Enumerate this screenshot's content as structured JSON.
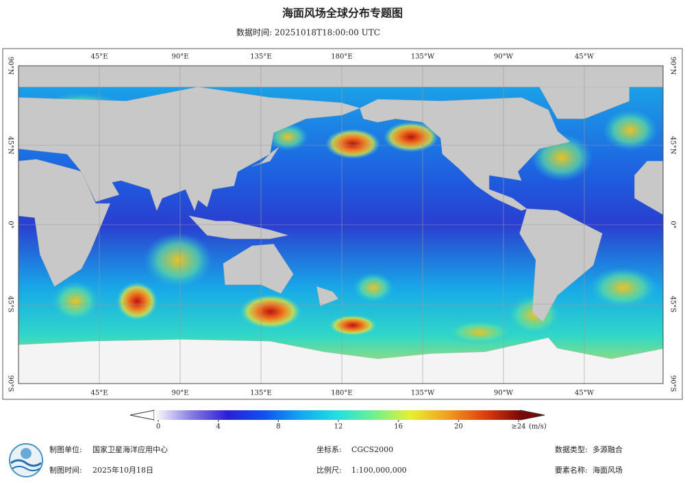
{
  "header": {
    "title": "海面风场全球分布专题图",
    "subtitle": "数据时间: 20251018T18:00:00 UTC"
  },
  "map": {
    "lon_labels": [
      {
        "value": 45,
        "label": "45°E"
      },
      {
        "value": 90,
        "label": "90°E"
      },
      {
        "value": 135,
        "label": "135°E"
      },
      {
        "value": 180,
        "label": "180°E"
      },
      {
        "value": 225,
        "label": "135°W"
      },
      {
        "value": 270,
        "label": "90°W"
      },
      {
        "value": 315,
        "label": "45°W"
      }
    ],
    "lat_labels": [
      {
        "value": 90,
        "label": "90°N"
      },
      {
        "value": 45,
        "label": "45°N"
      },
      {
        "value": 0,
        "label": "0°"
      },
      {
        "value": -45,
        "label": "45°S"
      },
      {
        "value": -90,
        "label": "90°S"
      }
    ]
  },
  "colorbar": {
    "lim": [
      0,
      24
    ],
    "ticks": [
      0,
      4,
      8,
      12,
      16,
      20,
      {
        "value": 24,
        "label": "≥24"
      }
    ],
    "unit": "(m/s)",
    "colors": [
      "#ffffff",
      "#8a7fe0",
      "#2a1fd8",
      "#1050f0",
      "#12a8f0",
      "#20e0e0",
      "#70f090",
      "#e8f030",
      "#f0a020",
      "#e04010",
      "#7a0808"
    ]
  },
  "footer": {
    "unit": {
      "label": "制图单位:",
      "value": "国家卫星海洋应用中心"
    },
    "date": {
      "label": "制图时间:",
      "value": "2025年10月18日"
    },
    "crs": {
      "label": "坐标系:",
      "value": "CGCS2000"
    },
    "scale": {
      "label": "比例尺:",
      "value": "1:100,000,000"
    },
    "data_type": {
      "label": "数据类型:",
      "value": "多源融合"
    },
    "element": {
      "label": "要素名称:",
      "value": "海面风场"
    }
  }
}
